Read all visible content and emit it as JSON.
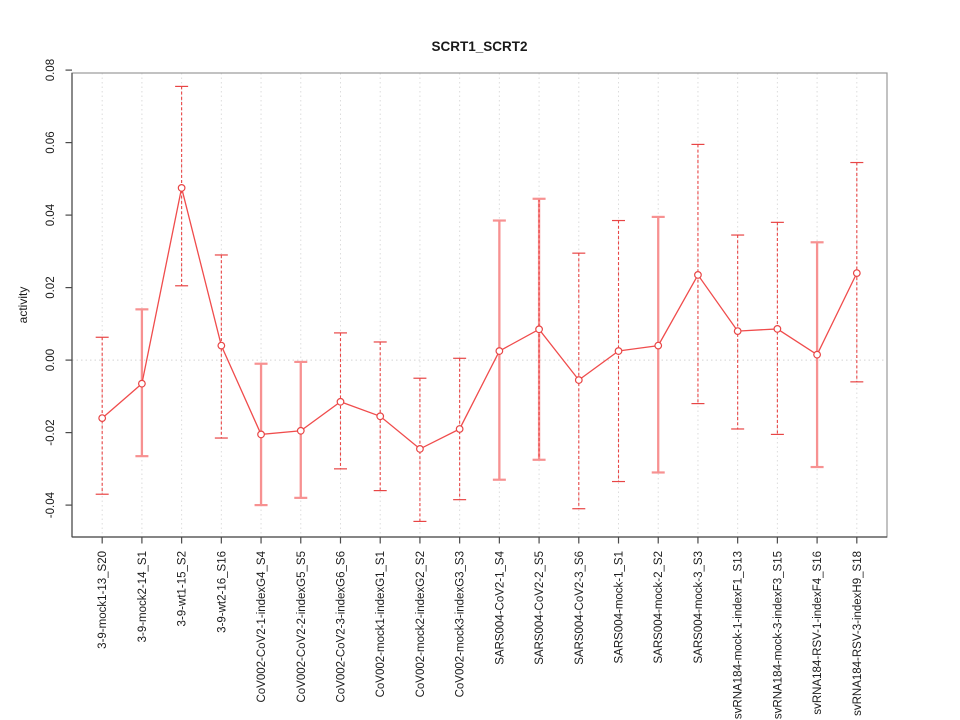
{
  "chart_data": {
    "type": "line",
    "title": "SCRT1_SCRT2",
    "xlabel": "",
    "ylabel": "activity",
    "legend_position": "none",
    "grid": "vertical dashed gridlines per category; dotted horizontal reference line at y=0",
    "ylim": [
      -0.0488,
      0.0792
    ],
    "xlim": [
      0.24,
      20.76
    ],
    "yticks": [
      {
        "v": -0.04,
        "label": "-0.04"
      },
      {
        "v": -0.02,
        "label": "-0.02"
      },
      {
        "v": 0.0,
        "label": "0.00"
      },
      {
        "v": 0.02,
        "label": "0.02"
      },
      {
        "v": 0.04,
        "label": "0.04"
      },
      {
        "v": 0.06,
        "label": "0.06"
      },
      {
        "v": 0.08,
        "label": "0.08"
      }
    ],
    "categories": [
      "3-9-mock1-13_S20",
      "3-9-mock2-14_S1",
      "3-9-wt1-15_S2",
      "3-9-wt2-16_S16",
      "CoV002-CoV2-1-indexG4_S4",
      "CoV002-CoV2-2-indexG5_S5",
      "CoV002-CoV2-3-indexG6_S6",
      "CoV002-mock1-indexG1_S1",
      "CoV002-mock2-indexG2_S2",
      "CoV002-mock3-indexG3_S3",
      "SARS004-CoV2-1_S4",
      "SARS004-CoV2-2_S5",
      "SARS004-CoV2-3_S6",
      "SARS004-mock-1_S1",
      "SARS004-mock-2_S2",
      "SARS004-mock-3_S3",
      "svRNA184-mock-1-indexF1_S13",
      "svRNA184-mock-3-indexF3_S15",
      "svRNA184-RSV-1-indexF4_S16",
      "svRNA184-RSV-3-indexH9_S18"
    ],
    "series": [
      {
        "name": "activity",
        "values": [
          -0.016,
          -0.0065,
          0.0475,
          0.004,
          -0.0205,
          -0.0195,
          -0.0115,
          -0.0155,
          -0.0245,
          -0.019,
          0.0025,
          0.0085,
          -0.0055,
          0.0025,
          0.004,
          0.0235,
          0.008,
          0.0086,
          0.0015,
          0.024
        ],
        "ci_low": [
          -0.037,
          -0.0265,
          0.0205,
          -0.0215,
          -0.04,
          -0.038,
          -0.03,
          -0.036,
          -0.0445,
          -0.0385,
          -0.033,
          -0.0275,
          -0.041,
          -0.0335,
          -0.031,
          -0.012,
          -0.019,
          -0.0205,
          -0.0295,
          -0.006
        ],
        "ci_high": [
          0.0063,
          0.014,
          0.0755,
          0.029,
          -0.001,
          -0.0005,
          0.0075,
          0.005,
          -0.005,
          0.0005,
          0.0385,
          0.0445,
          0.0295,
          0.0385,
          0.0395,
          0.0595,
          0.0345,
          0.038,
          0.0325,
          0.0545
        ],
        "bar_styles": [
          "dashed",
          "solid",
          "dashed",
          "dashed",
          "solid",
          "solid",
          "dashed",
          "dashed",
          "dashed",
          "dashed",
          "solid",
          "both",
          "dashed",
          "dashed",
          "solid",
          "dashed",
          "dashed",
          "dashed",
          "solid",
          "dashed"
        ]
      }
    ],
    "colors": {
      "line": "#f04c4c",
      "point_stroke": "#e84545",
      "point_fill": "#ffffff",
      "bar_dark": "#e84545",
      "bar_light": "#f79191",
      "grid": "#dcdcdc",
      "zero_line": "#d4d4d4",
      "box": "#999999",
      "axis": "#4a4a4a",
      "text": "#1a1a1a"
    }
  }
}
